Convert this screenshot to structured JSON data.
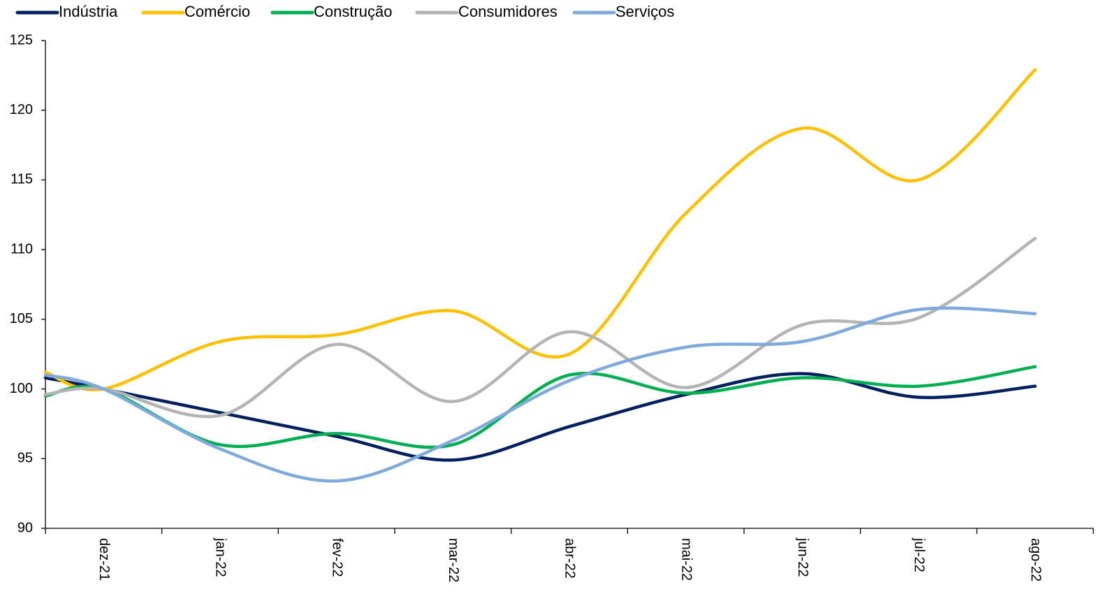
{
  "chart_data": {
    "type": "line",
    "categories": [
      null,
      "dez-21",
      "jan-22",
      "fev-22",
      "mar-22",
      "abr-22",
      "mai-22",
      "jun-22",
      "jul-22",
      "ago-22"
    ],
    "series": [
      {
        "name": "Indústria",
        "color": "#002060",
        "values": [
          100.8,
          100.0,
          98.3,
          96.6,
          94.9,
          97.3,
          99.6,
          101.1,
          99.4,
          100.2
        ]
      },
      {
        "name": "Comércio",
        "color": "#FFC000",
        "values": [
          101.2,
          100.0,
          103.4,
          103.9,
          105.6,
          102.5,
          112.6,
          118.7,
          115.0,
          122.9
        ]
      },
      {
        "name": "Construção",
        "color": "#00B050",
        "values": [
          99.5,
          100.0,
          96.0,
          96.8,
          96.0,
          101.0,
          99.7,
          100.8,
          100.2,
          101.6
        ]
      },
      {
        "name": "Consumidores",
        "color": "#B4B4B4",
        "values": [
          99.6,
          100.0,
          98.1,
          103.2,
          99.1,
          104.1,
          100.1,
          104.6,
          105.1,
          110.8
        ]
      },
      {
        "name": "Serviços",
        "color": "#7FAADC",
        "values": [
          101.0,
          100.0,
          95.7,
          93.4,
          96.3,
          100.6,
          103.0,
          103.4,
          105.7,
          105.4
        ]
      }
    ],
    "ylim": [
      90,
      125
    ],
    "yticks": [
      90,
      95,
      100,
      105,
      110,
      115,
      120,
      125
    ],
    "grid": false,
    "legend": "top"
  }
}
